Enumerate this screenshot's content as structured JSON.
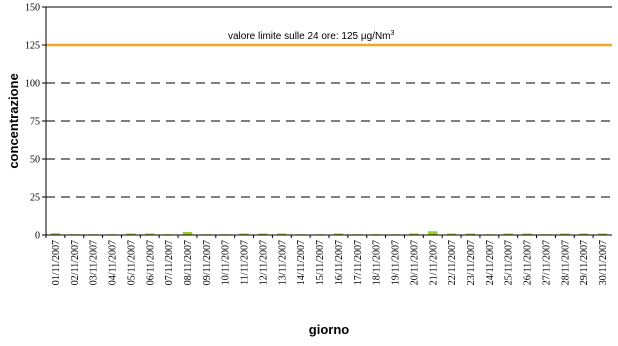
{
  "chart_data": {
    "type": "bar",
    "title": "",
    "xlabel": "giorno",
    "ylabel": "concentrazione",
    "ylim": [
      0,
      150
    ],
    "yticks": [
      "0",
      "25",
      "50",
      "75",
      "100",
      "125",
      "150"
    ],
    "gridlines": [
      25,
      50,
      75,
      100
    ],
    "grid_style": "dashed",
    "categories": [
      "01/11/2007",
      "02/11/2007",
      "03/11/2007",
      "04/11/2007",
      "05/11/2007",
      "06/11/2007",
      "07/11/2007",
      "08/11/2007",
      "09/11/2007",
      "10/11/2007",
      "11/11/2007",
      "12/11/2007",
      "13/11/2007",
      "14/11/2007",
      "15/11/2007",
      "16/11/2007",
      "17/11/2007",
      "18/11/2007",
      "19/11/2007",
      "20/11/2007",
      "21/11/2007",
      "22/11/2007",
      "23/11/2007",
      "24/11/2007",
      "25/11/2007",
      "26/11/2007",
      "27/11/2007",
      "28/11/2007",
      "29/11/2007",
      "30/11/2007"
    ],
    "values": [
      1.2,
      0.5,
      0.5,
      0.5,
      1.0,
      1.0,
      0.5,
      2.0,
      0.5,
      0.5,
      1.0,
      1.0,
      1.0,
      0.5,
      0.5,
      1.0,
      0.5,
      0.5,
      0.5,
      1.0,
      2.5,
      1.0,
      1.0,
      0.5,
      1.0,
      1.0,
      0.5,
      1.0,
      1.0,
      1.0
    ],
    "bar_color": "#9acd32",
    "limit_line": {
      "value": 125,
      "color": "#f5a623",
      "label": "valore limite sulle 24 ore: 125 µg/Nm",
      "label_superscript": "3"
    }
  }
}
